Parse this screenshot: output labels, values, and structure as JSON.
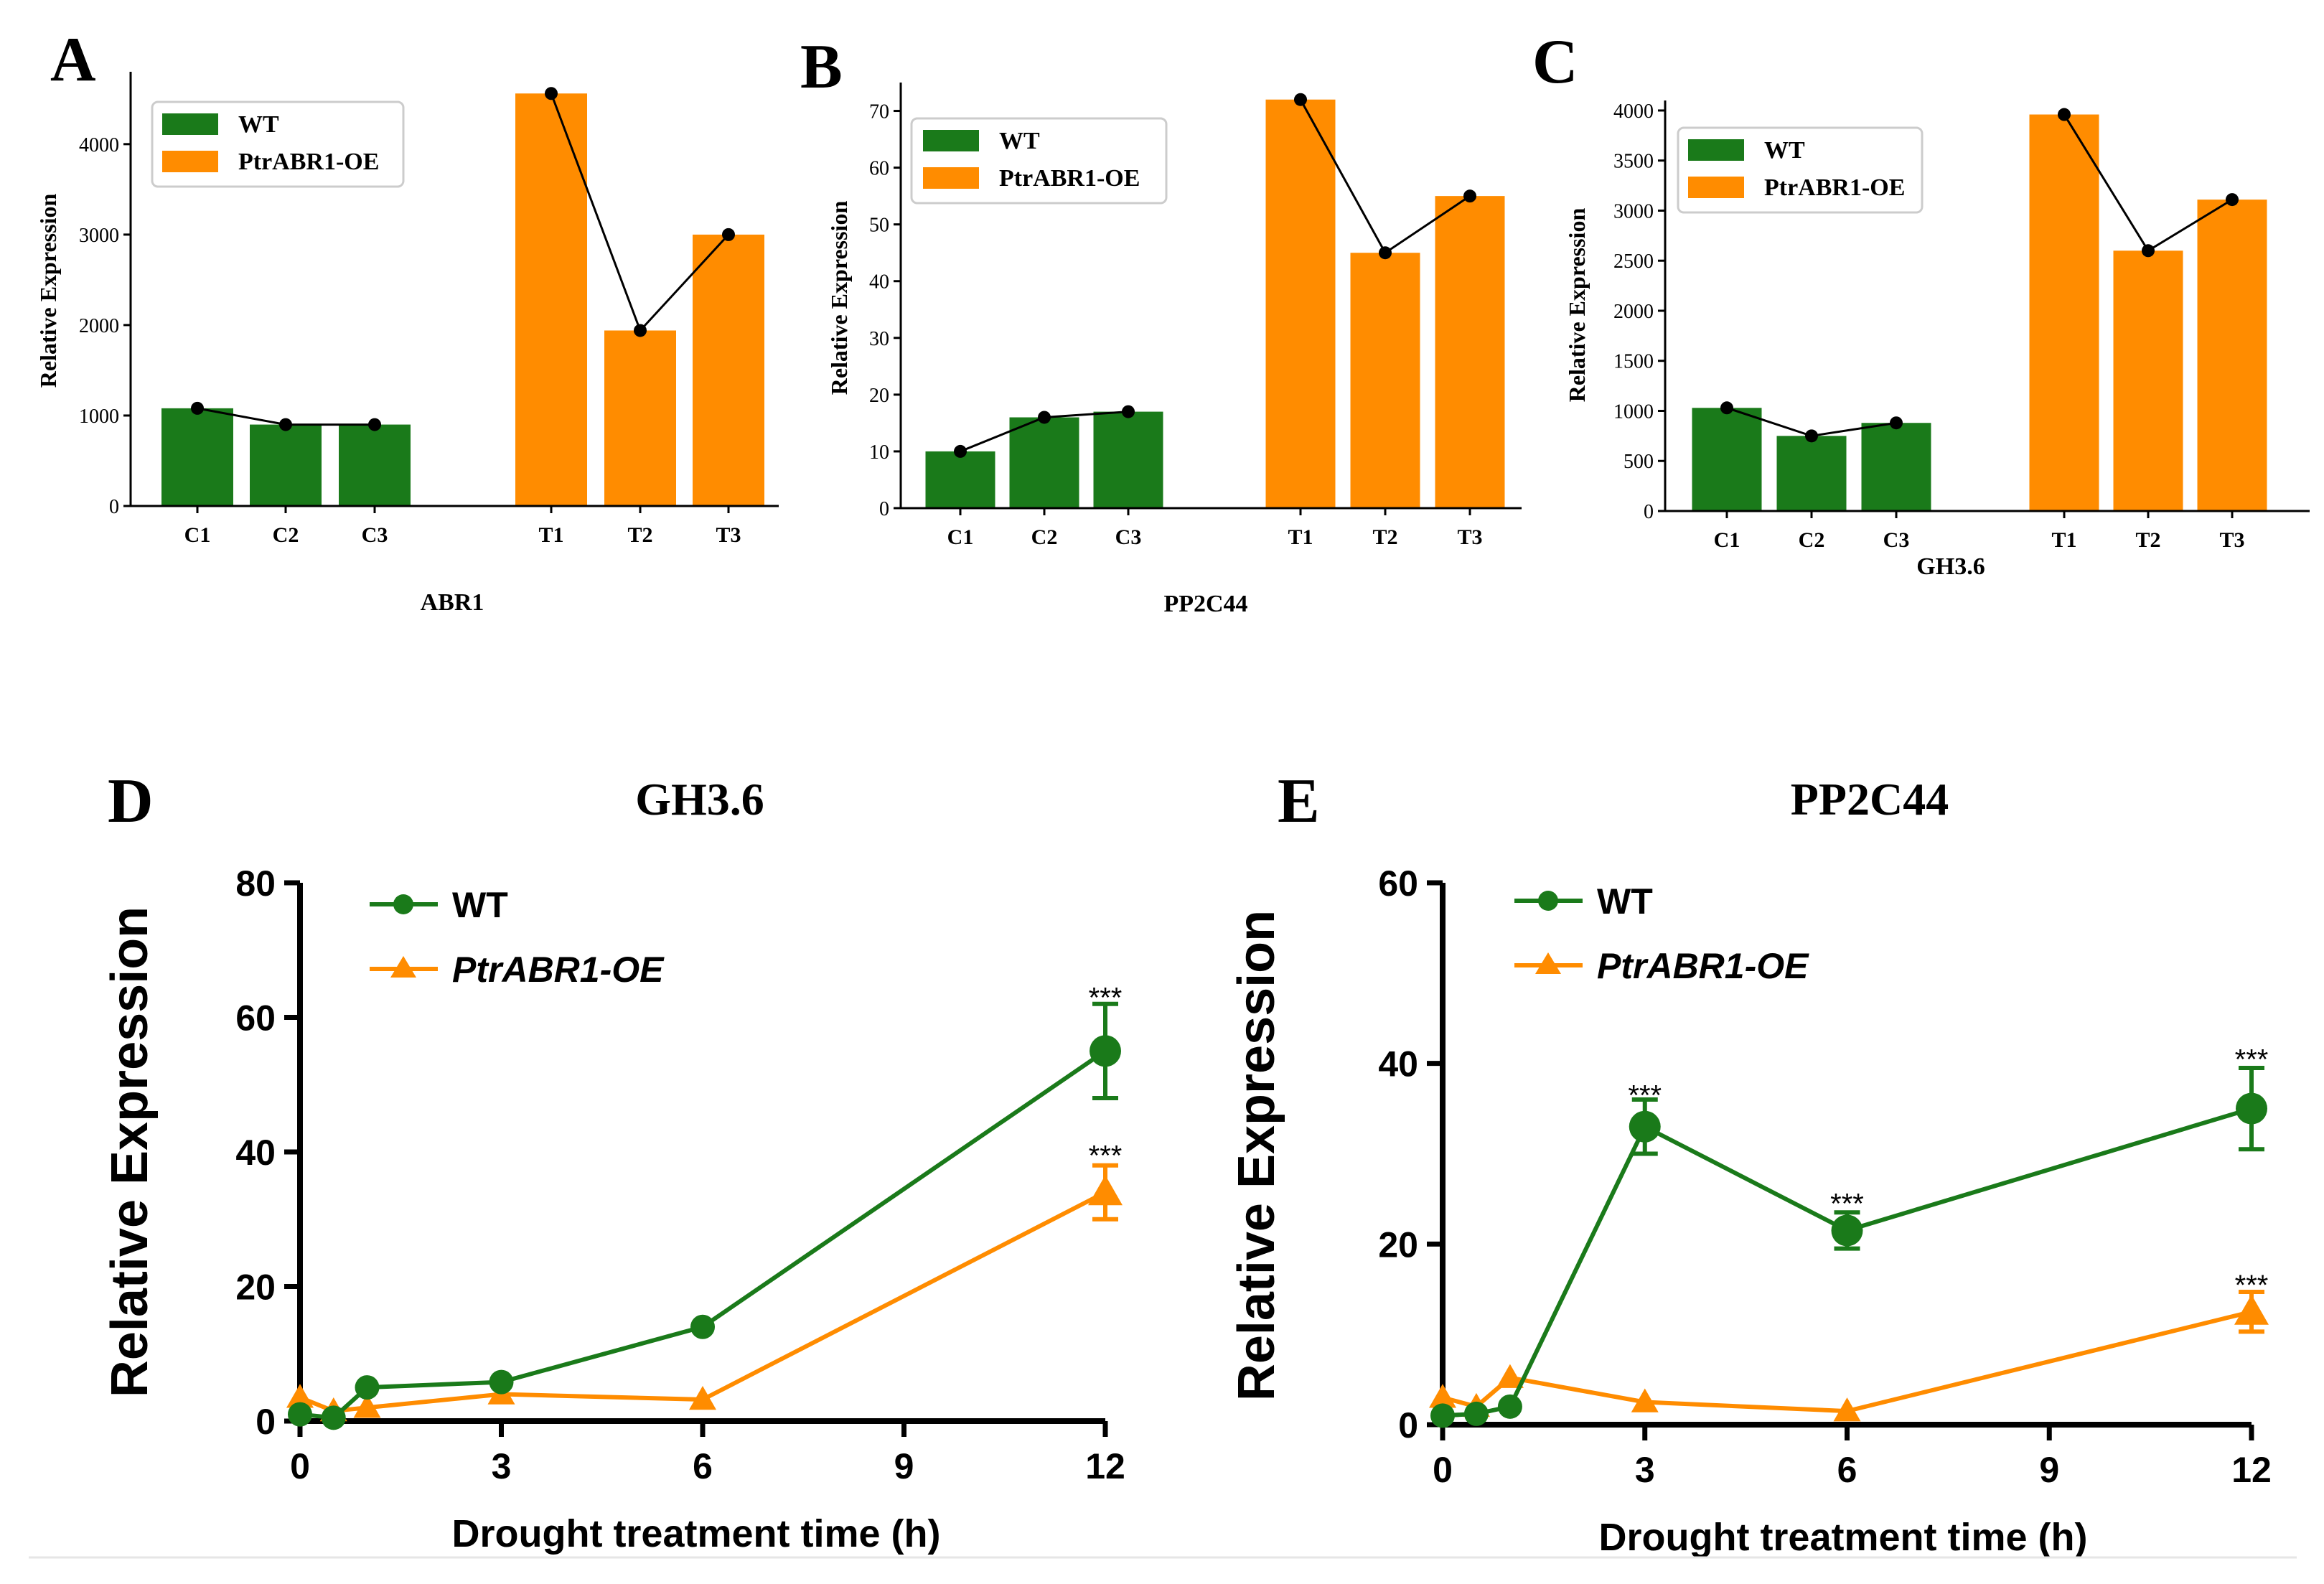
{
  "colors": {
    "wt": "#1a7a1a",
    "oe": "#ff8c00",
    "line": "#000000",
    "axis": "#000000",
    "errorbar": "#1a7a1a"
  },
  "chart_data": [
    {
      "panel": "A",
      "type": "bar",
      "categories": [
        "C1",
        "C2",
        "C3",
        "T1",
        "T2",
        "T3"
      ],
      "groups": [
        "WT",
        "WT",
        "WT",
        "PtrABR1-OE",
        "PtrABR1-OE",
        "PtrABR1-OE"
      ],
      "values": [
        1080,
        900,
        900,
        4560,
        1940,
        3000
      ],
      "legend": [
        "WT",
        "PtrABR1-OE"
      ],
      "xlabel": "ABR1",
      "ylabel": "Relative Expression",
      "ylim": [
        0,
        4800
      ],
      "yticks": [
        0,
        1000,
        2000,
        3000,
        4000
      ]
    },
    {
      "panel": "B",
      "type": "bar",
      "categories": [
        "C1",
        "C2",
        "C3",
        "T1",
        "T2",
        "T3"
      ],
      "groups": [
        "WT",
        "WT",
        "WT",
        "PtrABR1-OE",
        "PtrABR1-OE",
        "PtrABR1-OE"
      ],
      "values": [
        10,
        16,
        17,
        72,
        45,
        55
      ],
      "legend": [
        "WT",
        "PtrABR1-OE"
      ],
      "xlabel": "PP2C44",
      "ylabel": "Relative Expression",
      "ylim": [
        0,
        75
      ],
      "yticks": [
        0,
        10,
        20,
        30,
        40,
        50,
        60,
        70
      ]
    },
    {
      "panel": "C",
      "type": "bar",
      "categories": [
        "C1",
        "C2",
        "C3",
        "T1",
        "T2",
        "T3"
      ],
      "groups": [
        "WT",
        "WT",
        "WT",
        "PtrABR1-OE",
        "PtrABR1-OE",
        "PtrABR1-OE"
      ],
      "values": [
        1030,
        750,
        880,
        3960,
        2600,
        3110
      ],
      "legend": [
        "WT",
        "PtrABR1-OE"
      ],
      "xlabel": "GH3.6",
      "ylabel": "Relative Expression",
      "ylim": [
        0,
        4100
      ],
      "yticks": [
        0,
        500,
        1000,
        1500,
        2000,
        2500,
        3000,
        3500,
        4000
      ]
    },
    {
      "panel": "D",
      "type": "line",
      "title": "GH3.6",
      "xlabel": "Drought treatment time (h)",
      "ylabel": "Relative Expression",
      "xlim": [
        0,
        12
      ],
      "ylim": [
        0,
        80
      ],
      "xticks": [
        0,
        3,
        6,
        9,
        12
      ],
      "yticks": [
        0,
        20,
        40,
        60,
        80
      ],
      "series": [
        {
          "name": "WT",
          "marker": "circle",
          "x": [
            0,
            0.5,
            1,
            3,
            6,
            12
          ],
          "y": [
            1,
            0.5,
            5,
            5.8,
            14,
            55
          ],
          "err": [
            0,
            0,
            0,
            0,
            0,
            7
          ]
        },
        {
          "name": "PtrABR1-OE",
          "marker": "triangle",
          "x": [
            0,
            0.5,
            1,
            3,
            6,
            12
          ],
          "y": [
            3.5,
            1.5,
            2,
            4,
            3.2,
            34
          ],
          "err": [
            0,
            0,
            0,
            0,
            0,
            4
          ]
        }
      ],
      "annotations": [
        {
          "label": "***",
          "x": 12,
          "y": 63
        },
        {
          "label": "***",
          "x": 12,
          "y": 39.5
        }
      ]
    },
    {
      "panel": "E",
      "type": "line",
      "title": "PP2C44",
      "xlabel": "Drought treatment time (h)",
      "ylabel": "Relative Expression",
      "xlim": [
        0,
        12
      ],
      "ylim": [
        0,
        60
      ],
      "xticks": [
        0,
        3,
        6,
        9,
        12
      ],
      "yticks": [
        0,
        20,
        40,
        60
      ],
      "series": [
        {
          "name": "WT",
          "marker": "circle",
          "x": [
            0,
            0.5,
            1,
            3,
            6,
            12
          ],
          "y": [
            1,
            1.2,
            2,
            33,
            21.5,
            35
          ],
          "err": [
            0,
            0,
            0,
            3,
            2,
            4.5
          ]
        },
        {
          "name": "PtrABR1-OE",
          "marker": "triangle",
          "x": [
            0,
            0.5,
            1,
            3,
            6,
            12
          ],
          "y": [
            3,
            2,
            5.2,
            2.5,
            1.5,
            12.5
          ],
          "err": [
            0,
            0,
            0,
            0,
            0,
            2.2
          ]
        }
      ],
      "annotations": [
        {
          "label": "***",
          "x": 3,
          "y": 36.5
        },
        {
          "label": "***",
          "x": 6,
          "y": 24.5
        },
        {
          "label": "***",
          "x": 12,
          "y": 40.5
        },
        {
          "label": "***",
          "x": 12,
          "y": 15.5
        }
      ]
    }
  ]
}
